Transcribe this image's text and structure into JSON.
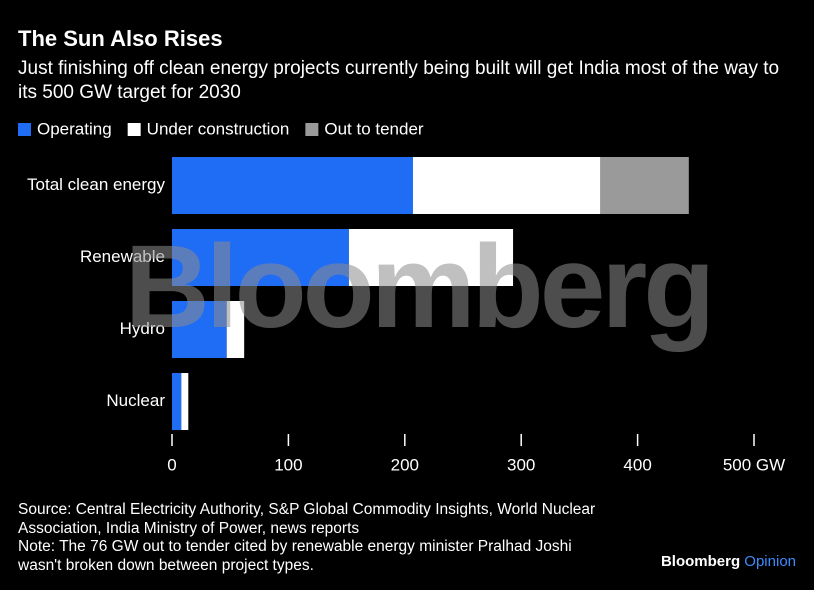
{
  "chart_data": {
    "type": "stacked-barh",
    "title": "The Sun Also Rises",
    "subtitle": "Just finishing off clean energy projects currently being built will get India most of the way to its 500 GW target for 2030",
    "categories": [
      "Total clean energy",
      "Renewable",
      "Hydro",
      "Nuclear"
    ],
    "series": [
      {
        "name": "Operating",
        "color": "#1f6cf5",
        "values": [
          207,
          152,
          47,
          8
        ]
      },
      {
        "name": "Under construction",
        "color": "#ffffff",
        "values": [
          161,
          141,
          15,
          6
        ]
      },
      {
        "name": "Out to tender",
        "color": "#9a9a9a",
        "values": [
          76,
          null,
          null,
          null
        ]
      }
    ],
    "xlim": [
      0,
      500
    ],
    "xticks": [
      0,
      100,
      200,
      300,
      400,
      {
        "value": 500,
        "label": "500 GW"
      }
    ],
    "source": "Source: Central Electricity Authority, S&P Global Commodity Insights, World Nuclear Association, India Ministry of Power, news reports",
    "note": "Note: The 76 GW out to tender cited by renewable energy minister Pralhad Joshi wasn't broken down between project types.",
    "watermark": "Bloomberg",
    "brand": [
      "Bloomberg",
      "Opinion"
    ]
  }
}
